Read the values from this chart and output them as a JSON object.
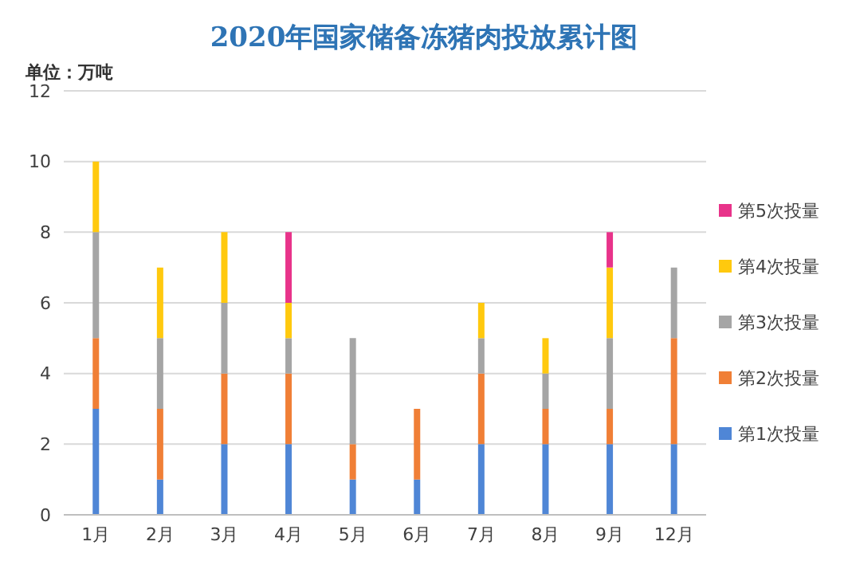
{
  "chart_data": {
    "type": "bar",
    "title": "2020年国家储备冻猪肉投放累计图",
    "ylabel": "单位：万吨",
    "stacked": true,
    "categories": [
      "1月",
      "2月",
      "3月",
      "4月",
      "5月",
      "6月",
      "7月",
      "8月",
      "9月",
      "12月"
    ],
    "series": [
      {
        "name": "第1次投量",
        "color": "#4f86d6",
        "values": [
          3,
          1,
          2,
          2,
          1,
          1,
          2,
          2,
          2,
          2
        ]
      },
      {
        "name": "第2次投量",
        "color": "#f07f36",
        "values": [
          2,
          2,
          2,
          2,
          1,
          2,
          2,
          1,
          1,
          3
        ]
      },
      {
        "name": "第3次投量",
        "color": "#a5a5a5",
        "values": [
          3,
          2,
          2,
          1,
          3,
          null,
          1,
          1,
          2,
          2
        ]
      },
      {
        "name": "第4次投量",
        "color": "#ffc90e",
        "values": [
          2,
          2,
          2,
          1,
          null,
          null,
          1,
          1,
          2,
          null
        ]
      },
      {
        "name": "第5次投量",
        "color": "#e8338a",
        "values": [
          null,
          null,
          null,
          2,
          null,
          null,
          null,
          null,
          1,
          null
        ]
      }
    ],
    "ylim": [
      0,
      12
    ],
    "yticks": [
      0,
      2,
      4,
      6,
      8,
      10,
      12
    ],
    "grid": "y",
    "legend": "right"
  }
}
